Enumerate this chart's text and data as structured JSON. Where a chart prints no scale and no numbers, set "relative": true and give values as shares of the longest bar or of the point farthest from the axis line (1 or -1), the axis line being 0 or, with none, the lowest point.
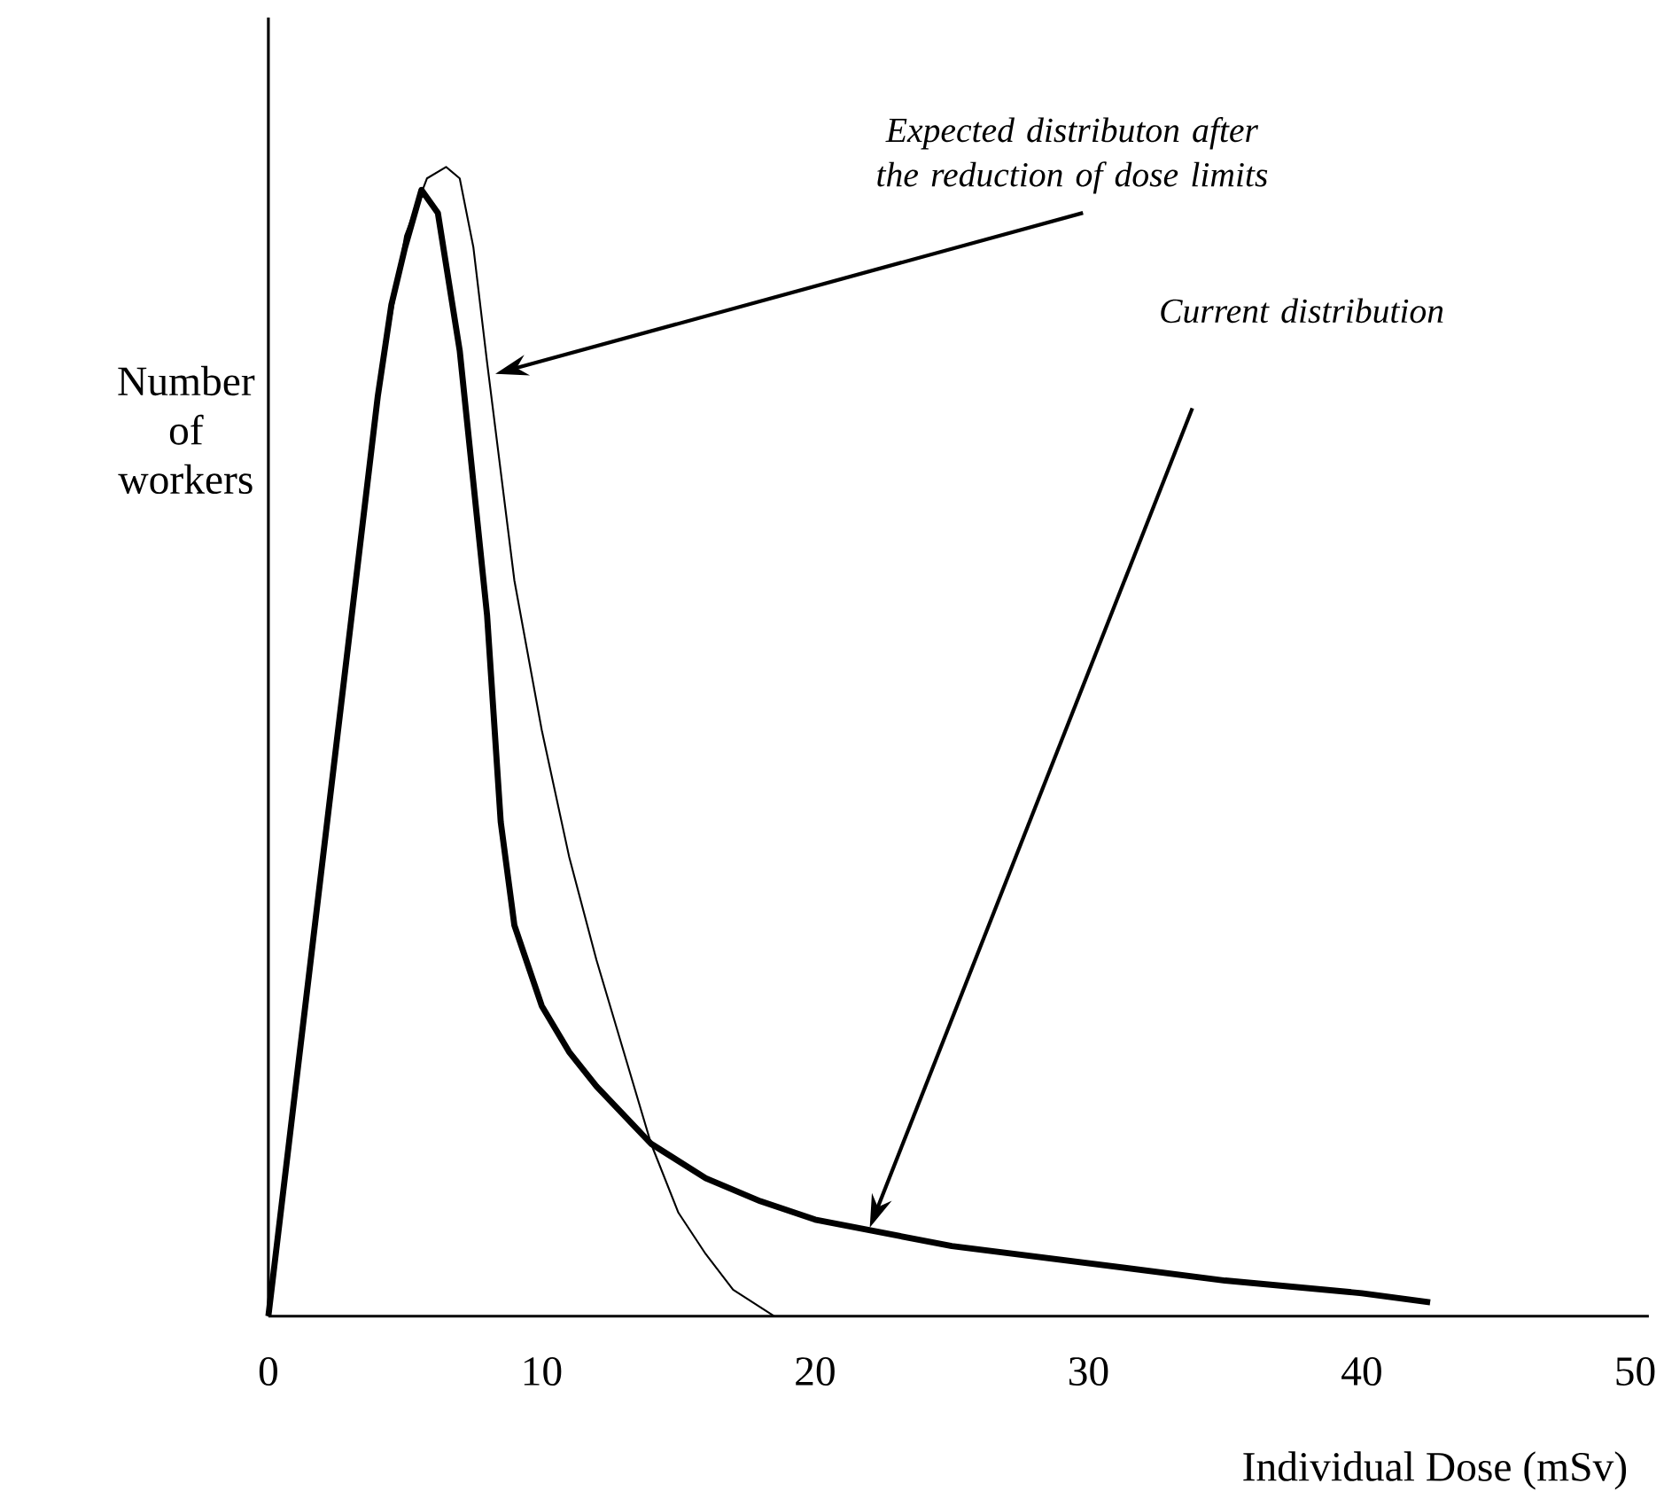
{
  "chart_data": {
    "type": "line",
    "relative": true,
    "xlabel": "Individual Dose (mSv)",
    "ylabel": "Number of workers",
    "xlim": [
      0,
      50.5
    ],
    "xticks": [
      0,
      10,
      20,
      30,
      40,
      50
    ],
    "grid": false,
    "marker": "none",
    "line_style": "solid",
    "series": [
      {
        "color": "#000000",
        "x": [
          0,
          1,
          2,
          3,
          4,
          4.5,
          5,
          5.6,
          6.2,
          7,
          8,
          8.5,
          9,
          10,
          11,
          12,
          14,
          16,
          18,
          20,
          25,
          30,
          35,
          40,
          42.5
        ],
        "values": [
          0,
          0.2,
          0.4,
          0.6,
          0.8,
          0.88,
          0.93,
          0.98,
          0.96,
          0.84,
          0.61,
          0.43,
          0.34,
          0.27,
          0.23,
          0.2,
          0.15,
          0.12,
          0.1,
          0.084,
          0.061,
          0.046,
          0.031,
          0.02,
          0.012
        ]
      },
      {
        "color": "#000000",
        "x": [
          0,
          1,
          2,
          3,
          4,
          5,
          5.8,
          6.5,
          7,
          7.5,
          8,
          9,
          10,
          11,
          12,
          13,
          14,
          15,
          16,
          17,
          18.5
        ],
        "values": [
          0,
          0.2,
          0.4,
          0.6,
          0.8,
          0.94,
          0.99,
          1,
          0.99,
          0.93,
          0.83,
          0.64,
          0.51,
          0.4,
          0.31,
          0.23,
          0.15,
          0.09,
          0.054,
          0.023,
          0
        ]
      }
    ],
    "annotations": [
      "*Expected distributon after*\n*the reduction of dose limits*",
      "*Current distribution*"
    ]
  }
}
